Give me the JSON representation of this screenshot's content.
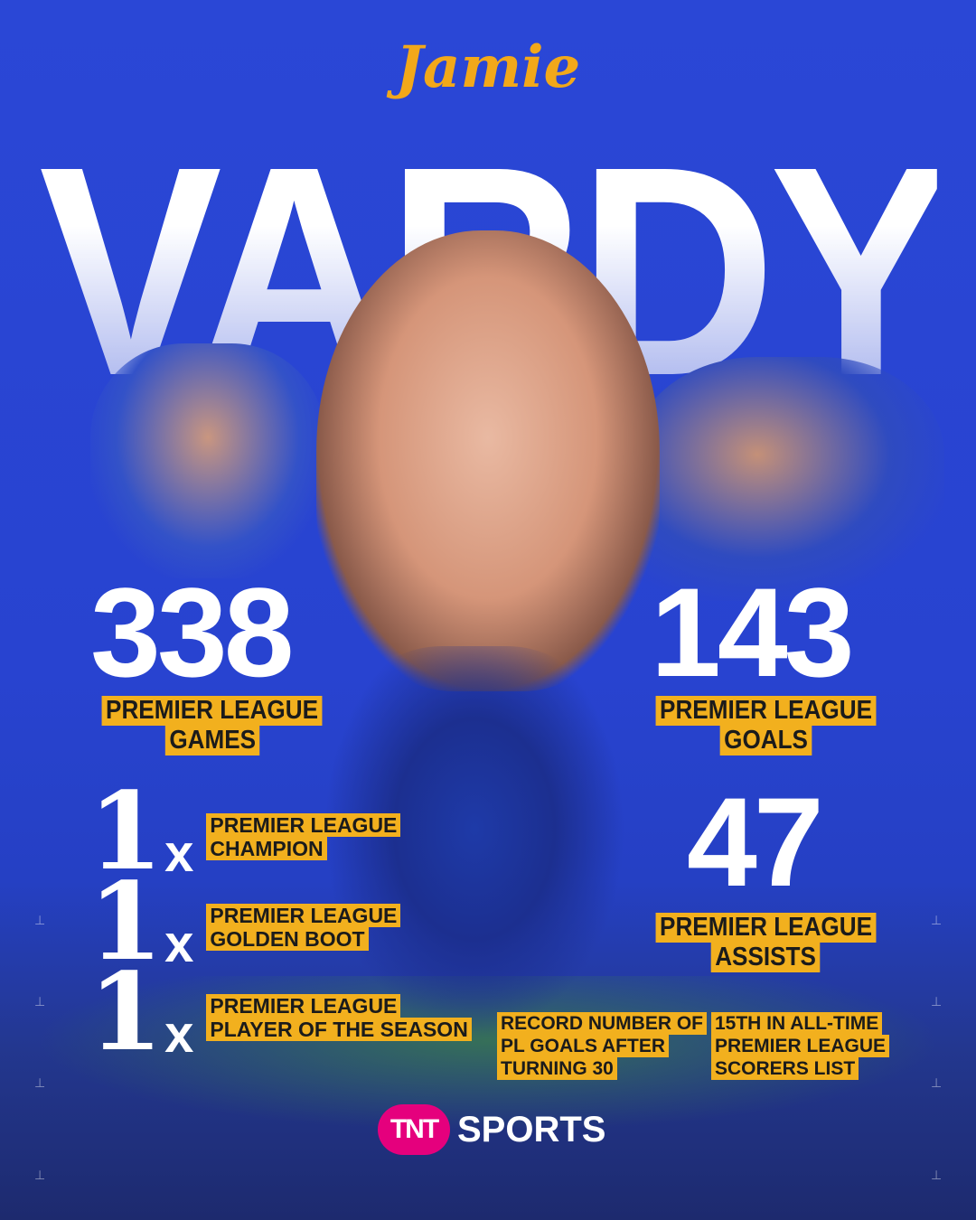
{
  "player": {
    "first_name": "Jamie",
    "last_name": "VARDY"
  },
  "stats": {
    "games": {
      "value": "338",
      "label": [
        "PREMIER LEAGUE",
        "GAMES"
      ]
    },
    "goals": {
      "value": "143",
      "label": [
        "PREMIER LEAGUE",
        "GOALS"
      ]
    },
    "assists": {
      "value": "47",
      "label": [
        "PREMIER LEAGUE",
        "ASSISTS"
      ]
    }
  },
  "honours": [
    {
      "count": "1",
      "x": "x",
      "label": [
        "PREMIER LEAGUE",
        "CHAMPION"
      ]
    },
    {
      "count": "1",
      "x": "x",
      "label": [
        "PREMIER LEAGUE",
        "GOLDEN BOOT"
      ]
    },
    {
      "count": "1",
      "x": "x",
      "label": [
        "PREMIER LEAGUE",
        "PLAYER OF THE SEASON"
      ]
    }
  ],
  "facts": [
    [
      "RECORD NUMBER OF",
      "PL GOALS AFTER",
      "TURNING 30"
    ],
    [
      "15TH IN ALL-TIME",
      "PREMIER LEAGUE",
      "SCORERS LIST"
    ]
  ],
  "brand": {
    "logo_mark": "TNT",
    "logo_text": "SPORTS",
    "color": "#e5007d"
  },
  "colors": {
    "background": "#2a47d6",
    "accent": "#f2b01e",
    "first_name": "#f2a81a"
  }
}
